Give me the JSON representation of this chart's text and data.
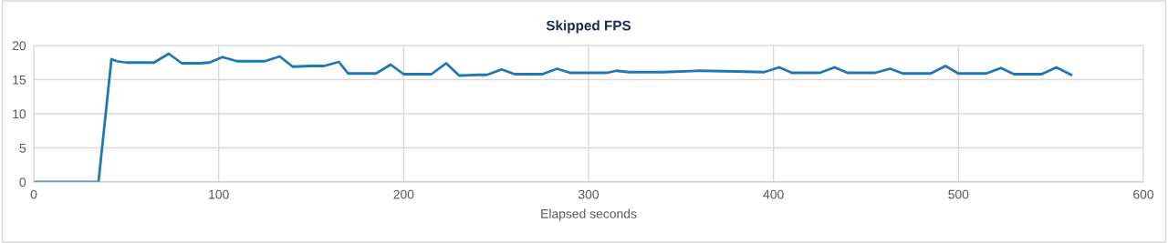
{
  "chart_data": {
    "type": "line",
    "title": "Skipped FPS",
    "xlabel": "Elapsed seconds",
    "x": [
      0,
      30,
      35,
      42,
      45,
      50,
      60,
      65,
      73,
      80,
      90,
      95,
      102,
      110,
      125,
      133,
      140,
      150,
      157,
      165,
      170,
      180,
      185,
      193,
      200,
      210,
      215,
      223,
      230,
      240,
      245,
      253,
      260,
      270,
      275,
      283,
      290,
      300,
      310,
      315,
      322,
      330,
      340,
      360,
      380,
      395,
      403,
      410,
      420,
      425,
      433,
      440,
      455,
      463,
      470,
      480,
      485,
      493,
      500,
      510,
      515,
      523,
      530,
      540,
      545,
      553,
      561
    ],
    "series": [
      {
        "color": "#1f77b4",
        "values": [
          0,
          0,
          0,
          18,
          17.7,
          17.5,
          17.5,
          17.5,
          18.8,
          17.4,
          17.4,
          17.5,
          18.3,
          17.7,
          17.7,
          18.4,
          16.9,
          17,
          17,
          17.6,
          15.9,
          15.9,
          15.9,
          17.2,
          15.8,
          15.8,
          15.8,
          17.4,
          15.6,
          15.7,
          15.7,
          16.5,
          15.8,
          15.8,
          15.8,
          16.6,
          16,
          16,
          16,
          16.3,
          16.1,
          16.1,
          16.1,
          16.3,
          16.2,
          16.1,
          16.8,
          16,
          16,
          16,
          16.8,
          16,
          16,
          16.6,
          15.9,
          15.9,
          15.9,
          17,
          15.9,
          15.9,
          15.9,
          16.7,
          15.8,
          15.8,
          15.8,
          16.8,
          15.7
        ]
      }
    ],
    "xlim": [
      0,
      600
    ],
    "xticks": [
      0,
      100,
      200,
      300,
      400,
      500,
      600
    ],
    "ylim": [
      0,
      20
    ],
    "yticks": [
      0,
      5,
      10,
      15,
      20
    ],
    "grid": true,
    "marker": "none",
    "line_style": "solid",
    "legend": false
  }
}
